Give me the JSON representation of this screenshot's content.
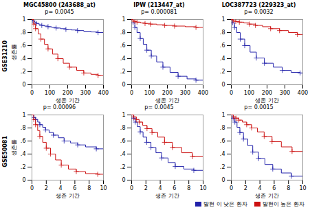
{
  "chart_data": [
    {
      "type": "step",
      "title": "p= 0.0045",
      "xlabel": "생존 기간",
      "ylabel": "생존률",
      "xlim": [
        0,
        400
      ],
      "xticks": [
        0,
        100,
        200,
        300,
        400
      ],
      "ylim": [
        0,
        1
      ],
      "yticks": [
        0,
        {
          "value": 0.2,
          "label": ".2"
        },
        {
          "value": 0.4,
          "label": ".4"
        },
        {
          "value": 0.6,
          "label": ".6"
        },
        {
          "value": 0.8,
          "label": ".8"
        },
        1
      ],
      "grid": false,
      "series": [
        {
          "name": "발현 이 낮은 환자",
          "color": "#2222aa",
          "marker": "plus",
          "x": [
            0,
            5,
            15,
            25,
            40,
            55,
            70,
            90,
            110,
            135,
            160,
            190,
            220,
            255,
            290,
            330,
            370,
            400
          ],
          "values": [
            1.0,
            0.98,
            0.96,
            0.94,
            0.92,
            0.91,
            0.9,
            0.89,
            0.88,
            0.87,
            0.86,
            0.85,
            0.84,
            0.83,
            0.82,
            0.81,
            0.8,
            0.8
          ],
          "censor_x": [
            5,
            25,
            55,
            90,
            135,
            190,
            255,
            370
          ],
          "censor_y": [
            0.98,
            0.94,
            0.91,
            0.89,
            0.87,
            0.85,
            0.83,
            0.8
          ]
        },
        {
          "name": "발현이 높은 환자",
          "color": "#cc1111",
          "marker": "plus",
          "x": [
            0,
            10,
            20,
            35,
            50,
            70,
            90,
            115,
            145,
            175,
            210,
            250,
            290,
            330,
            370,
            400
          ],
          "values": [
            1.0,
            0.93,
            0.86,
            0.78,
            0.7,
            0.62,
            0.55,
            0.47,
            0.4,
            0.33,
            0.27,
            0.22,
            0.18,
            0.16,
            0.14,
            0.13
          ],
          "censor_x": [
            10,
            20,
            50,
            90,
            145,
            210,
            290,
            370
          ],
          "censor_y": [
            0.93,
            0.86,
            0.7,
            0.55,
            0.4,
            0.27,
            0.18,
            0.14
          ]
        }
      ]
    },
    {
      "type": "step",
      "title": "p= 0.000081",
      "xlabel": "생존 기간",
      "xlim": [
        0,
        400
      ],
      "xticks": [
        0,
        100,
        200,
        300,
        400
      ],
      "ylim": [
        0,
        1
      ],
      "yticks": [
        0,
        {
          "value": 0.2,
          "label": ".2"
        },
        {
          "value": 0.4,
          "label": ".4"
        },
        {
          "value": 0.6,
          "label": ".6"
        },
        {
          "value": 0.8,
          "label": ".8"
        },
        1
      ],
      "grid": false,
      "series": [
        {
          "name": "발현 이 낮은 환자",
          "color": "#2222aa",
          "marker": "plus",
          "x": [
            0,
            8,
            18,
            30,
            48,
            65,
            85,
            110,
            140,
            175,
            215,
            260,
            310,
            360,
            400
          ],
          "values": [
            1.0,
            0.95,
            0.88,
            0.8,
            0.71,
            0.62,
            0.53,
            0.44,
            0.35,
            0.27,
            0.19,
            0.13,
            0.09,
            0.07,
            0.07
          ],
          "censor_x": [
            8,
            18,
            48,
            85,
            110,
            175,
            260,
            360
          ],
          "censor_y": [
            0.95,
            0.88,
            0.71,
            0.53,
            0.44,
            0.27,
            0.13,
            0.07
          ]
        },
        {
          "name": "발현이 높은 환자",
          "color": "#cc1111",
          "marker": "plus",
          "x": [
            0,
            8,
            18,
            30,
            50,
            75,
            105,
            140,
            185,
            240,
            300,
            360,
            400
          ],
          "values": [
            1.0,
            0.98,
            0.97,
            0.96,
            0.95,
            0.94,
            0.93,
            0.92,
            0.91,
            0.9,
            0.89,
            0.88,
            0.88
          ],
          "censor_x": [
            8,
            18,
            30,
            75,
            105,
            185,
            240,
            360
          ],
          "censor_y": [
            0.98,
            0.97,
            0.96,
            0.94,
            0.93,
            0.91,
            0.9,
            0.88
          ]
        }
      ]
    },
    {
      "type": "step",
      "title": "p= 0.0032",
      "xlabel": "생존 기간",
      "xlim": [
        0,
        400
      ],
      "xticks": [
        0,
        100,
        200,
        300,
        400
      ],
      "ylim": [
        0,
        1
      ],
      "yticks": [
        0,
        {
          "value": 0.2,
          "label": ".2"
        },
        {
          "value": 0.4,
          "label": ".4"
        },
        {
          "value": 0.6,
          "label": ".6"
        },
        {
          "value": 0.8,
          "label": ".8"
        },
        1
      ],
      "grid": false,
      "series": [
        {
          "name": "발현 이 낮은 환자",
          "color": "#2222aa",
          "marker": "plus",
          "x": [
            0,
            8,
            18,
            30,
            50,
            75,
            105,
            140,
            185,
            235,
            285,
            335,
            385,
            400
          ],
          "values": [
            1.0,
            0.95,
            0.88,
            0.8,
            0.7,
            0.6,
            0.5,
            0.41,
            0.33,
            0.27,
            0.22,
            0.19,
            0.18,
            0.18
          ],
          "censor_x": [
            8,
            18,
            50,
            75,
            140,
            185,
            285,
            385
          ],
          "censor_y": [
            0.95,
            0.88,
            0.7,
            0.6,
            0.41,
            0.33,
            0.22,
            0.18
          ]
        },
        {
          "name": "발현이 높은 환자",
          "color": "#cc1111",
          "marker": "plus",
          "x": [
            0,
            10,
            25,
            45,
            70,
            100,
            135,
            175,
            220,
            270,
            320,
            370,
            400
          ],
          "values": [
            1.0,
            0.98,
            0.97,
            0.96,
            0.95,
            0.93,
            0.91,
            0.89,
            0.86,
            0.83,
            0.8,
            0.77,
            0.75
          ],
          "censor_x": [
            10,
            25,
            45,
            100,
            135,
            220,
            270,
            370
          ],
          "censor_y": [
            0.98,
            0.97,
            0.96,
            0.93,
            0.91,
            0.86,
            0.83,
            0.77
          ]
        }
      ]
    },
    {
      "type": "step",
      "title": "p= 0.00096",
      "xlabel": "생존 기간",
      "ylabel": "생존률",
      "xlim": [
        0,
        10
      ],
      "xticks": [
        0,
        2,
        4,
        6,
        8,
        10
      ],
      "ylim": [
        0,
        1
      ],
      "yticks": [
        0,
        {
          "value": 0.2,
          "label": ".2"
        },
        {
          "value": 0.4,
          "label": ".4"
        },
        {
          "value": 0.6,
          "label": ".6"
        },
        {
          "value": 0.8,
          "label": ".8"
        },
        1
      ],
      "grid": false,
      "series": [
        {
          "name": "발현 이 낮은 환자",
          "color": "#2222aa",
          "marker": "plus",
          "x": [
            0,
            0.25,
            0.5,
            0.8,
            1.1,
            1.5,
            1.9,
            2.4,
            3.0,
            3.7,
            4.5,
            5.4,
            6.4,
            7.5,
            9.0,
            10.0
          ],
          "values": [
            1.0,
            0.96,
            0.93,
            0.89,
            0.85,
            0.81,
            0.77,
            0.73,
            0.69,
            0.65,
            0.6,
            0.57,
            0.54,
            0.51,
            0.48,
            0.46
          ],
          "censor_x": [
            0.25,
            0.5,
            1.1,
            1.9,
            3.0,
            4.5,
            6.4,
            9.0
          ],
          "censor_y": [
            0.96,
            0.93,
            0.85,
            0.77,
            0.69,
            0.6,
            0.54,
            0.48
          ]
        },
        {
          "name": "발현이 높은 환자",
          "color": "#cc1111",
          "marker": "plus",
          "x": [
            0,
            0.25,
            0.5,
            0.8,
            1.1,
            1.5,
            2.0,
            2.6,
            3.3,
            4.1,
            5.1,
            6.2,
            7.5,
            9.2,
            10.0
          ],
          "values": [
            1.0,
            0.93,
            0.85,
            0.76,
            0.67,
            0.58,
            0.49,
            0.4,
            0.31,
            0.23,
            0.17,
            0.13,
            0.1,
            0.09,
            0.09
          ],
          "censor_x": [
            0.25,
            0.5,
            1.1,
            2.0,
            2.6,
            4.1,
            6.2,
            9.2
          ],
          "censor_y": [
            0.93,
            0.85,
            0.67,
            0.49,
            0.4,
            0.23,
            0.13,
            0.09
          ]
        }
      ]
    },
    {
      "type": "step",
      "title": "p= 0.0045",
      "xlabel": "생존 기간",
      "xlim": [
        0,
        10
      ],
      "xticks": [
        0,
        2,
        4,
        6,
        8,
        10
      ],
      "ylim": [
        0,
        1
      ],
      "yticks": [
        0,
        {
          "value": 0.2,
          "label": ".2"
        },
        {
          "value": 0.4,
          "label": ".4"
        },
        {
          "value": 0.6,
          "label": ".6"
        },
        {
          "value": 0.8,
          "label": ".8"
        },
        1
      ],
      "grid": false,
      "series": [
        {
          "name": "발현 이 낮은 환자",
          "color": "#2222aa",
          "marker": "plus",
          "x": [
            0,
            0.25,
            0.5,
            0.8,
            1.2,
            1.6,
            2.1,
            2.7,
            3.4,
            4.2,
            5.1,
            6.1,
            7.3,
            8.7,
            10.0
          ],
          "values": [
            1.0,
            0.95,
            0.89,
            0.82,
            0.74,
            0.66,
            0.58,
            0.5,
            0.42,
            0.34,
            0.27,
            0.21,
            0.17,
            0.15,
            0.14
          ],
          "censor_x": [
            0.25,
            0.5,
            1.2,
            2.1,
            2.7,
            4.2,
            6.1,
            8.7
          ],
          "censor_y": [
            0.95,
            0.89,
            0.74,
            0.58,
            0.5,
            0.34,
            0.21,
            0.15
          ]
        },
        {
          "name": "발현이 높은 환자",
          "color": "#cc1111",
          "marker": "plus",
          "x": [
            0,
            0.3,
            0.65,
            1.05,
            1.55,
            2.15,
            2.85,
            3.65,
            4.6,
            5.7,
            7.0,
            8.5,
            10.0
          ],
          "values": [
            1.0,
            0.97,
            0.93,
            0.89,
            0.84,
            0.79,
            0.73,
            0.66,
            0.58,
            0.5,
            0.42,
            0.36,
            0.33
          ],
          "censor_x": [
            0.3,
            0.65,
            1.05,
            2.15,
            2.85,
            4.6,
            5.7,
            8.5
          ],
          "censor_y": [
            0.97,
            0.93,
            0.89,
            0.79,
            0.73,
            0.58,
            0.5,
            0.36
          ]
        }
      ]
    },
    {
      "type": "step",
      "title": "p= 0.0015",
      "xlabel": "생존 기간",
      "xlim": [
        0,
        10
      ],
      "xticks": [
        0,
        2,
        4,
        6,
        8,
        10
      ],
      "ylim": [
        0,
        1
      ],
      "yticks": [
        0,
        {
          "value": 0.2,
          "label": ".2"
        },
        {
          "value": 0.4,
          "label": ".4"
        },
        {
          "value": 0.6,
          "label": ".6"
        },
        {
          "value": 0.8,
          "label": ".8"
        },
        1
      ],
      "grid": false,
      "series": [
        {
          "name": "발현 이 낮은 환자",
          "color": "#2222aa",
          "marker": "plus",
          "x": [
            0,
            0.25,
            0.5,
            0.8,
            1.2,
            1.7,
            2.3,
            3.0,
            3.8,
            4.7,
            5.8,
            7.0,
            8.4,
            10.0
          ],
          "values": [
            1.0,
            0.95,
            0.89,
            0.81,
            0.73,
            0.63,
            0.53,
            0.43,
            0.33,
            0.24,
            0.17,
            0.11,
            0.06,
            0.02
          ],
          "censor_x": [
            0.25,
            0.5,
            1.2,
            1.7,
            3.0,
            3.8,
            5.8,
            8.4
          ],
          "censor_y": [
            0.95,
            0.89,
            0.73,
            0.63,
            0.43,
            0.33,
            0.17,
            0.06
          ]
        },
        {
          "name": "발현이 높은 환자",
          "color": "#cc1111",
          "marker": "plus",
          "x": [
            0,
            0.3,
            0.65,
            1.05,
            1.55,
            2.15,
            2.85,
            3.65,
            4.6,
            5.7,
            7.0,
            8.5,
            10.0
          ],
          "values": [
            1.0,
            0.97,
            0.95,
            0.92,
            0.89,
            0.85,
            0.8,
            0.74,
            0.67,
            0.59,
            0.51,
            0.44,
            0.4
          ],
          "censor_x": [
            0.3,
            0.65,
            1.05,
            2.15,
            2.85,
            4.6,
            5.7,
            8.5
          ],
          "censor_y": [
            0.97,
            0.95,
            0.92,
            0.85,
            0.8,
            0.67,
            0.59,
            0.44
          ]
        }
      ]
    }
  ],
  "col_titles": [
    "MGC45800 (243688_at)",
    "IPW (213447_at)",
    "LOC387723 (229323_at)"
  ],
  "row_labels": [
    "GSE31210",
    "GSE50081"
  ],
  "legend": "lower right"
}
